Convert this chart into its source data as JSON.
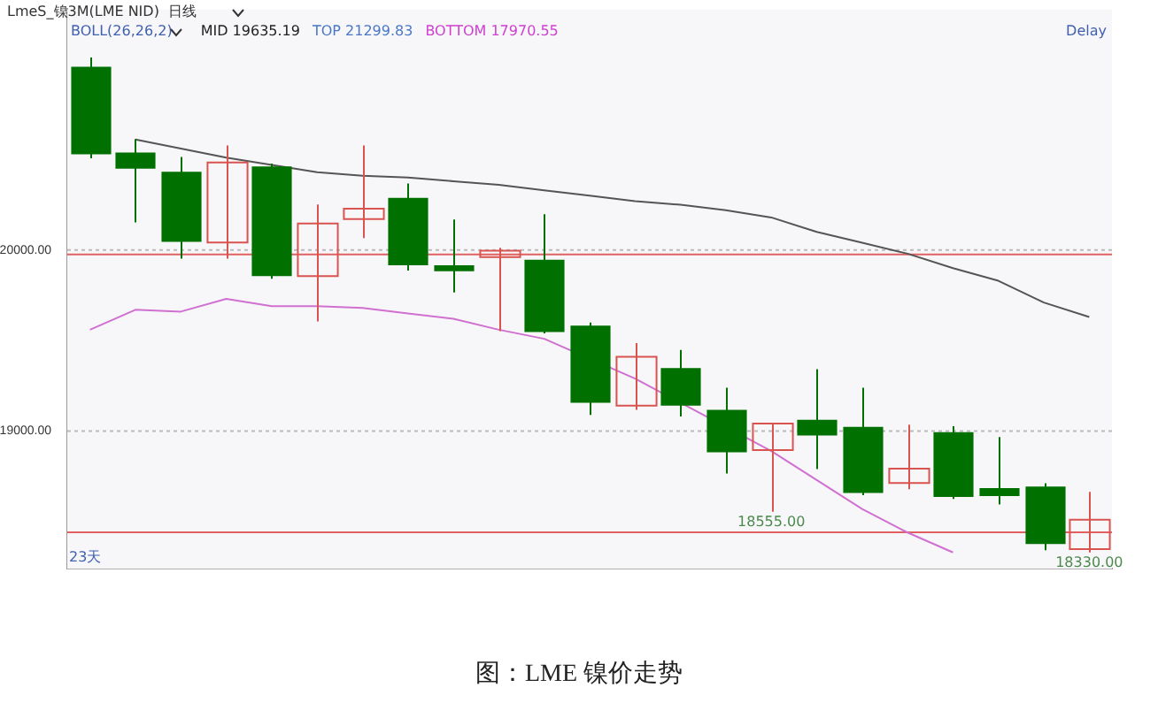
{
  "chart_data": {
    "type": "candlestick",
    "title": "图：LME 镍价走势",
    "categories": [
      null,
      null,
      null,
      null,
      null,
      null,
      null,
      null,
      null,
      null,
      null,
      null,
      null,
      null,
      null,
      null,
      null,
      null,
      null,
      null,
      null,
      null,
      null
    ],
    "series": [
      {
        "ohlc": [
          [
            21012,
            21063,
            20507,
            20529
          ],
          [
            20538,
            20613,
            20153,
            20449
          ],
          [
            20432,
            20514,
            19952,
            20045
          ],
          [
            20042,
            20577,
            19952,
            20484
          ],
          [
            20462,
            20477,
            19841,
            19856
          ],
          [
            19856,
            20252,
            19606,
            20147
          ],
          [
            20171,
            20577,
            20066,
            20228
          ],
          [
            20288,
            20367,
            19886,
            19916
          ],
          [
            19916,
            20168,
            19766,
            19883
          ],
          [
            19961,
            20012,
            19552,
            19997
          ],
          [
            19946,
            20198,
            19540,
            19547
          ],
          [
            19583,
            19600,
            19090,
            19156
          ],
          [
            19141,
            19486,
            19117,
            19411
          ],
          [
            19348,
            19448,
            19081,
            19141
          ],
          [
            19117,
            19240,
            18766,
            18883
          ],
          [
            18895,
            19042,
            18555,
            19042
          ],
          [
            19063,
            19342,
            18790,
            18976
          ],
          [
            19024,
            19240,
            18646,
            18658
          ],
          [
            18714,
            19036,
            18679,
            18793
          ],
          [
            18994,
            19027,
            18625,
            18637
          ],
          [
            18685,
            18967,
            18595,
            18642
          ],
          [
            18694,
            18712,
            18342,
            18376
          ],
          [
            18349,
            18664,
            18330,
            18511
          ]
        ],
        "colors": [
          "#007000",
          "#007000",
          "#007000",
          "#d9534f",
          "#007000",
          "#d9534f",
          "#d9534f",
          "#007000",
          "#007000",
          "#d9534f",
          "#007000",
          "#007000",
          "#d9534f",
          "#007000",
          "#007000",
          "#d9534f",
          "#007000",
          "#007000",
          "#d9534f",
          "#007000",
          "#007000",
          "#007000",
          "#d9534f"
        ]
      },
      {
        "type": "line",
        "color": "#555555",
        "values": [
          null,
          20610,
          20560,
          20510,
          20470,
          20430,
          20410,
          20400,
          20380,
          20360,
          20330,
          20300,
          20270,
          20250,
          20220,
          20180,
          20100,
          20040,
          19980,
          19900,
          19830,
          19710,
          19630
        ]
      },
      {
        "type": "line",
        "color": "#d070d0",
        "values": [
          19560,
          19670,
          19660,
          19730,
          19690,
          19690,
          19680,
          19650,
          19620,
          19560,
          19510,
          null,
          19290,
          null,
          null,
          18890,
          18730,
          18570,
          18440,
          18330,
          null,
          null,
          null
        ]
      }
    ],
    "ylim": [
      18240,
      21330
    ],
    "yticks": [
      {
        "value": 19000,
        "label": "19000.00"
      },
      {
        "value": 20000,
        "label": "20000.00"
      }
    ],
    "grid": "y",
    "legend": false,
    "ref_lines": [
      {
        "axis": "y",
        "value": 19976,
        "color": "#e06060"
      },
      {
        "axis": "y",
        "value": 18441,
        "color": "#e06060"
      }
    ],
    "annotations": [
      "LmeS_镍3M(LME NID)  日线",
      "BOLL(26,26,2)",
      "MID 19635.19",
      "TOP 21299.83",
      "BOTTOM 17970.55",
      "Delay",
      "23天",
      {
        "text": "18555.00",
        "y": 18555
      },
      {
        "text": "18330.00",
        "y": 18330
      }
    ]
  }
}
